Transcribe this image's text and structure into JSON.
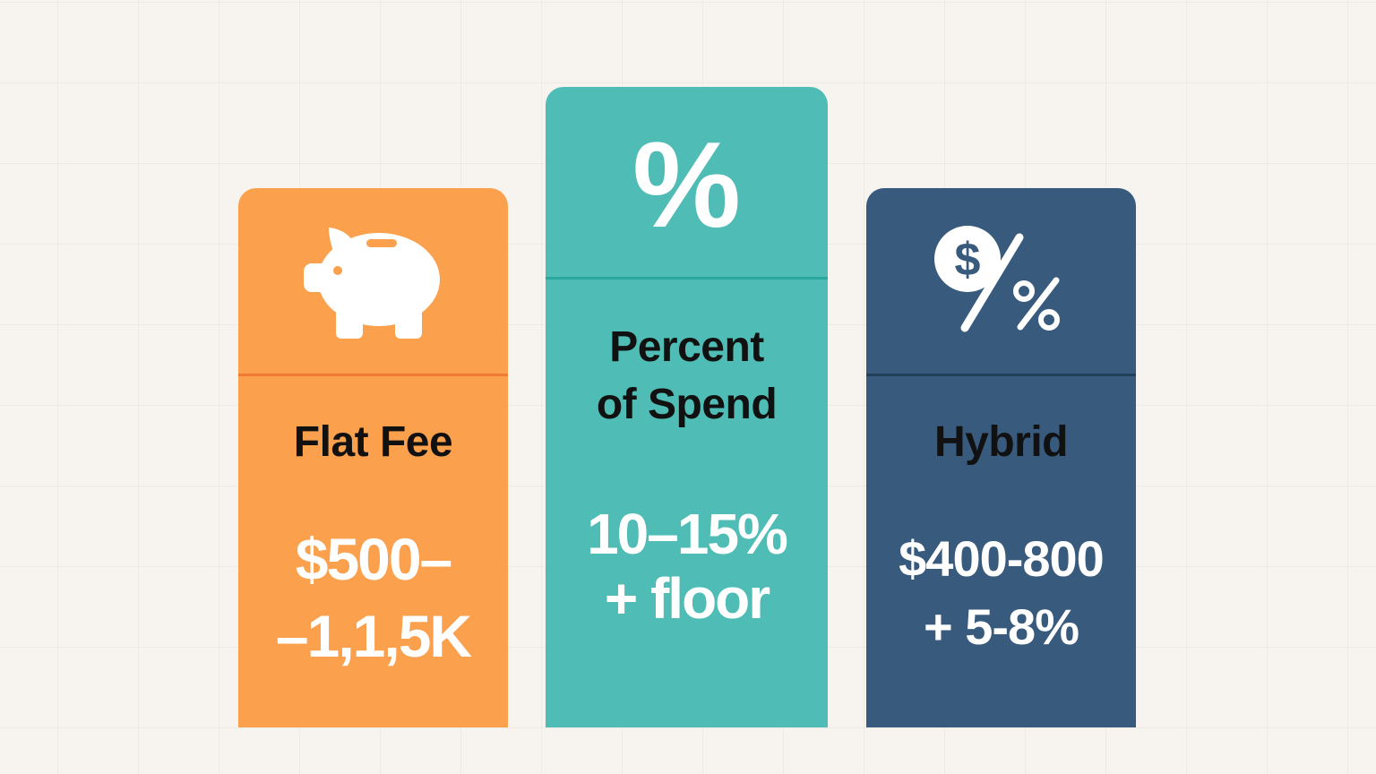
{
  "colors": {
    "background": "#f7f4ef",
    "flat_fee": "#fba04c",
    "flat_fee_divider": "#f07a34",
    "percent_of_spend": "#4fbdb5",
    "percent_of_spend_divider": "#2aa79f",
    "hybrid": "#375a7d",
    "hybrid_divider": "#243f5a"
  },
  "cards": [
    {
      "icon": "piggy-bank-icon",
      "title": "Flat Fee",
      "price_line1": "$500–",
      "price_line2": "–1,1,5K"
    },
    {
      "icon": "percent-icon",
      "icon_glyph": "%",
      "title_line1": "Percent",
      "title_line2": "of Spend",
      "price_line1": "10–15%",
      "price_line2": "+ floor"
    },
    {
      "icon": "dollar-percent-icon",
      "title": "Hybrid",
      "price_line1": "$400-800",
      "price_line2": "+ 5-8%"
    }
  ]
}
